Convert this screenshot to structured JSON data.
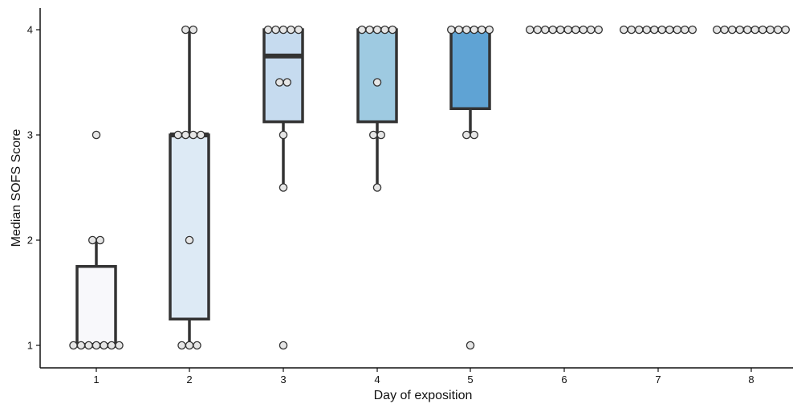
{
  "chart_data": {
    "type": "boxplot",
    "xlabel": "Day of exposition",
    "ylabel": "Median SOFS Score",
    "categories": [
      "1",
      "2",
      "3",
      "4",
      "5",
      "6",
      "7",
      "8"
    ],
    "yticks": [
      "1",
      "2",
      "3",
      "4"
    ],
    "ylim": [
      0.8,
      4.2
    ],
    "grid": false,
    "legend": "none",
    "boxes": [
      {
        "day": "1",
        "q1": 1.0,
        "median": 1.0,
        "q3": 1.75,
        "whisker_low": 1.0,
        "whisker_high": 2.0,
        "fill": "#f8f8fb"
      },
      {
        "day": "2",
        "q1": 1.25,
        "median": 3.0,
        "q3": 3.0,
        "whisker_low": 1.0,
        "whisker_high": 4.0,
        "fill": "#ddeaf5"
      },
      {
        "day": "3",
        "q1": 3.125,
        "median": 3.75,
        "q3": 4.0,
        "whisker_low": 2.5,
        "whisker_high": 4.0,
        "fill": "#c6dbef"
      },
      {
        "day": "4",
        "q1": 3.125,
        "median": 4.0,
        "q3": 4.0,
        "whisker_low": 2.5,
        "whisker_high": 4.0,
        "fill": "#9ecae1"
      },
      {
        "day": "5",
        "q1": 3.25,
        "median": 4.0,
        "q3": 4.0,
        "whisker_low": 3.0,
        "whisker_high": 4.0,
        "fill": "#5fa3d4"
      },
      {
        "day": "6",
        "q1": 4.0,
        "median": 4.0,
        "q3": 4.0,
        "whisker_low": 4.0,
        "whisker_high": 4.0,
        "fill": "#3a7fbf"
      },
      {
        "day": "7",
        "q1": 4.0,
        "median": 4.0,
        "q3": 4.0,
        "whisker_low": 4.0,
        "whisker_high": 4.0,
        "fill": "#2b6aa8"
      },
      {
        "day": "8",
        "q1": 4.0,
        "median": 4.0,
        "q3": 4.0,
        "whisker_low": 4.0,
        "whisker_high": 4.0,
        "fill": "#1f5a93"
      }
    ],
    "points": [
      {
        "day": "1",
        "values": [
          3,
          2,
          2,
          1,
          1,
          1,
          1,
          1,
          1,
          1
        ]
      },
      {
        "day": "2",
        "values": [
          4,
          4,
          3,
          3,
          3,
          3,
          2,
          1,
          1,
          1
        ]
      },
      {
        "day": "3",
        "values": [
          4,
          4,
          4,
          4,
          4,
          3.5,
          3.5,
          3,
          2.5,
          1
        ]
      },
      {
        "day": "4",
        "values": [
          4,
          4,
          4,
          4,
          4,
          3.5,
          3,
          3,
          2.5
        ]
      },
      {
        "day": "5",
        "values": [
          4,
          4,
          4,
          4,
          4,
          4,
          3,
          3,
          1
        ]
      },
      {
        "day": "6",
        "values": [
          4,
          4,
          4,
          4,
          4,
          4,
          4,
          4,
          4,
          4
        ]
      },
      {
        "day": "7",
        "values": [
          4,
          4,
          4,
          4,
          4,
          4,
          4,
          4,
          4,
          4
        ]
      },
      {
        "day": "8",
        "values": [
          4,
          4,
          4,
          4,
          4,
          4,
          4,
          4,
          4,
          4
        ]
      }
    ]
  }
}
